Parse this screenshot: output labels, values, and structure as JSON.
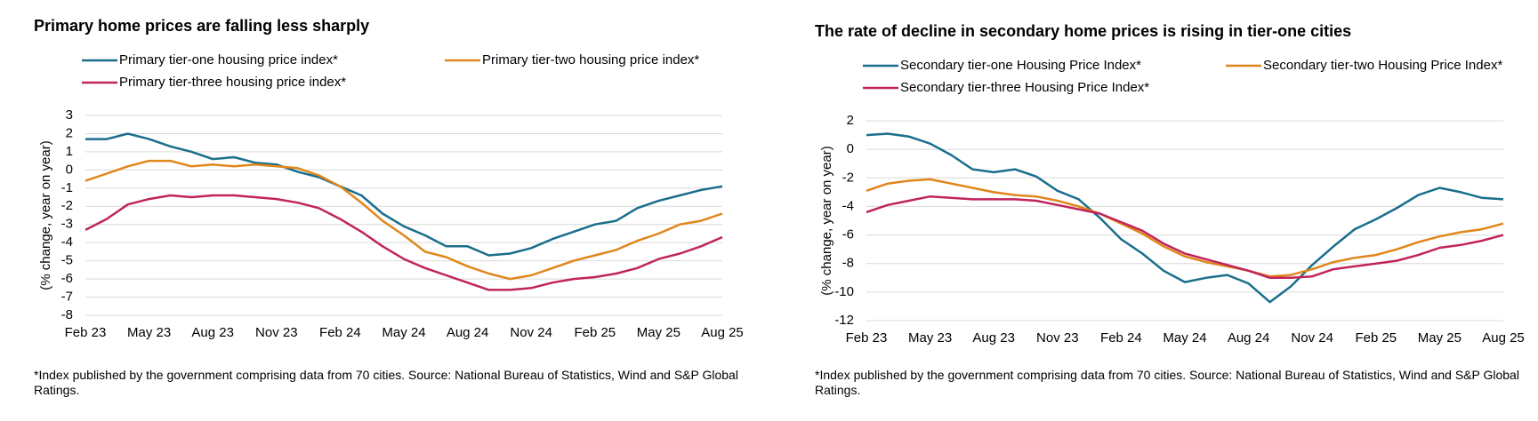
{
  "chart_data": [
    {
      "type": "line",
      "title": "Primary home prices are falling less sharply",
      "y_label": "(% change, year on year)",
      "footnote": "*Index published by the government comprising data from 70 cities. Source: National Bureau of Statistics, Wind and S&P Global Ratings.",
      "categories": [
        "Feb 23",
        null,
        null,
        "May 23",
        null,
        null,
        "Aug 23",
        null,
        null,
        "Nov 23",
        null,
        null,
        "Feb 24",
        null,
        null,
        "May 24",
        null,
        null,
        "Aug 24",
        null,
        null,
        "Nov 24",
        null,
        null,
        "Feb 25",
        null,
        null,
        "May 25",
        null,
        null,
        "Aug 25"
      ],
      "ylim": [
        -8,
        3
      ],
      "yticks": [
        -8,
        -7,
        -6,
        -5,
        -4,
        -3,
        -2,
        -1,
        0,
        1,
        2,
        3
      ],
      "grid": true,
      "series": [
        {
          "name": "Primary tier-one housing price index*",
          "color": "#1a6e8c",
          "values": [
            1.7,
            1.7,
            2.0,
            1.7,
            1.3,
            1.0,
            0.6,
            0.7,
            0.4,
            0.3,
            -0.1,
            -0.4,
            -0.9,
            -1.4,
            -2.4,
            -3.1,
            -3.6,
            -4.2,
            -4.2,
            -4.7,
            -4.6,
            -4.3,
            -3.8,
            -3.4,
            -3.0,
            -2.8,
            -2.1,
            -1.7,
            -1.4,
            -1.1,
            -0.9
          ]
        },
        {
          "name": "Primary tier-two housing price index*",
          "color": "#e0861a",
          "values": [
            -0.6,
            -0.2,
            0.2,
            0.5,
            0.5,
            0.2,
            0.3,
            0.2,
            0.3,
            0.2,
            0.1,
            -0.3,
            -0.9,
            -1.8,
            -2.8,
            -3.6,
            -4.5,
            -4.8,
            -5.3,
            -5.7,
            -6.0,
            -5.8,
            -5.4,
            -5.0,
            -4.7,
            -4.4,
            -3.9,
            -3.5,
            -3.0,
            -2.8,
            -2.4
          ]
        },
        {
          "name": "Primary tier-three housing price index*",
          "color": "#c0245c",
          "values": [
            -3.3,
            -2.7,
            -1.9,
            -1.6,
            -1.4,
            -1.5,
            -1.4,
            -1.4,
            -1.5,
            -1.6,
            -1.8,
            -2.1,
            -2.7,
            -3.4,
            -4.2,
            -4.9,
            -5.4,
            -5.8,
            -6.2,
            -6.6,
            -6.6,
            -6.5,
            -6.2,
            -6.0,
            -5.9,
            -5.7,
            -5.4,
            -4.9,
            -4.6,
            -4.2,
            -3.7
          ]
        }
      ]
    },
    {
      "type": "line",
      "title": "The rate of decline in secondary home prices is rising in tier-one cities",
      "y_label": "(% change, year on year)",
      "footnote": "*Index published by the government comprising data from 70 cities. Source: National Bureau of Statistics, Wind and S&P Global Ratings.",
      "categories": [
        "Feb 23",
        null,
        null,
        "May 23",
        null,
        null,
        "Aug 23",
        null,
        null,
        "Nov 23",
        null,
        null,
        "Feb 24",
        null,
        null,
        "May 24",
        null,
        null,
        "Aug 24",
        null,
        null,
        "Nov 24",
        null,
        null,
        "Feb 25",
        null,
        null,
        "May 25",
        null,
        null,
        "Aug 25"
      ],
      "ylim": [
        -12,
        2
      ],
      "yticks": [
        -12,
        -10,
        -8,
        -6,
        -4,
        -2,
        0,
        2
      ],
      "grid": true,
      "series": [
        {
          "name": "Secondary tier-one Housing Price Index*",
          "color": "#1a6e8c",
          "values": [
            1.0,
            1.1,
            0.9,
            0.4,
            -0.4,
            -1.4,
            -1.6,
            -1.4,
            -1.9,
            -2.9,
            -3.5,
            -4.8,
            -6.3,
            -7.3,
            -8.5,
            -9.3,
            -9.0,
            -8.8,
            -9.4,
            -10.7,
            -9.6,
            -8.1,
            -6.8,
            -5.6,
            -4.9,
            -4.1,
            -3.2,
            -2.7,
            -3.0,
            -3.4,
            -3.5
          ]
        },
        {
          "name": "Secondary tier-two Housing Price Index*",
          "color": "#e0861a",
          "values": [
            -2.9,
            -2.4,
            -2.2,
            -2.1,
            -2.4,
            -2.7,
            -3.0,
            -3.2,
            -3.3,
            -3.6,
            -4.0,
            -4.5,
            -5.2,
            -5.9,
            -6.8,
            -7.5,
            -7.9,
            -8.2,
            -8.5,
            -8.9,
            -8.8,
            -8.4,
            -7.9,
            -7.6,
            -7.4,
            -7.0,
            -6.5,
            -6.1,
            -5.8,
            -5.6,
            -5.2
          ]
        },
        {
          "name": "Secondary tier-three Housing Price Index*",
          "color": "#c0245c",
          "values": [
            -4.4,
            -3.9,
            -3.6,
            -3.3,
            -3.4,
            -3.5,
            -3.5,
            -3.5,
            -3.6,
            -3.9,
            -4.2,
            -4.5,
            -5.1,
            -5.7,
            -6.6,
            -7.3,
            -7.7,
            -8.1,
            -8.5,
            -9.0,
            -9.0,
            -8.9,
            -8.4,
            -8.2,
            -8.0,
            -7.8,
            -7.4,
            -6.9,
            -6.7,
            -6.4,
            -6.0
          ]
        }
      ]
    }
  ]
}
